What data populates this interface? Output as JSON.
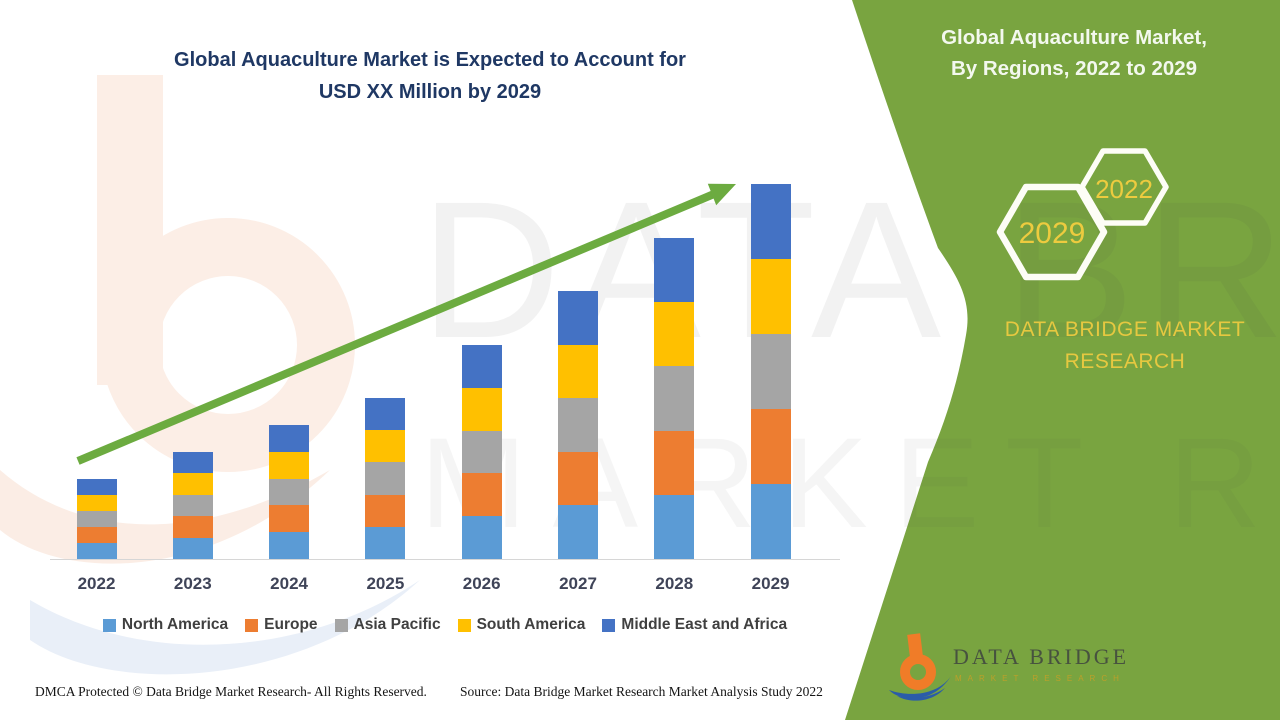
{
  "title": {
    "line1": "Global Aquaculture Market is Expected to Account for",
    "line2": "USD XX Million by 2029"
  },
  "right_panel": {
    "heading_line1": "Global Aquaculture Market,",
    "heading_line2": "By Regions, 2022 to 2029",
    "hexagons": [
      {
        "label": "2029"
      },
      {
        "label": "2022"
      }
    ],
    "brand_line1": "DATA BRIDGE MARKET",
    "brand_line2": "RESEARCH",
    "panel_color": "#79A440",
    "hexagon_outline_color": "#FDFDF6",
    "accent_yellow": "#E6C840"
  },
  "watermark": {
    "line1": "DATA BRIDGE",
    "line2": "MARKET RESEARCH"
  },
  "logo": {
    "name": "DATA BRIDGE",
    "subtitle": "MARKET RESEARCH"
  },
  "footer": {
    "dmca": "DMCA Protected © Data Bridge Market Research- All Rights Reserved.",
    "source": "Source: Data Bridge Market Research Market Analysis Study 2022"
  },
  "chart_data": {
    "type": "bar",
    "variant": "stacked",
    "title": "Global Aquaculture Market is Expected to Account for USD XX Million by 2029",
    "xlabel": "",
    "ylabel": "",
    "y_axis_visible": false,
    "grid": false,
    "legend_position": "bottom",
    "ylim": [
      0,
      400
    ],
    "units": "relative index (no numeric axis shown; values labeled USD XX Million)",
    "categories": [
      "2022",
      "2023",
      "2024",
      "2025",
      "2026",
      "2027",
      "2028",
      "2029"
    ],
    "series": [
      {
        "name": "North America",
        "color": "#5B9BD5",
        "values": [
          16,
          21.4,
          26.8,
          32.2,
          42.8,
          53.6,
          64.2,
          75
        ]
      },
      {
        "name": "Europe",
        "color": "#ED7D31",
        "values": [
          16,
          21.4,
          26.8,
          32.2,
          42.8,
          53.6,
          64.2,
          75
        ]
      },
      {
        "name": "Asia Pacific",
        "color": "#A5A5A5",
        "values": [
          16,
          21.4,
          26.8,
          32.2,
          42.8,
          53.6,
          64.2,
          75
        ]
      },
      {
        "name": "South America",
        "color": "#FFC000",
        "values": [
          16,
          21.4,
          26.8,
          32.2,
          42.8,
          53.6,
          64.2,
          75
        ]
      },
      {
        "name": "Middle East and Africa",
        "color": "#4472C4",
        "values": [
          16,
          21.4,
          26.8,
          32.2,
          42.8,
          53.6,
          64.2,
          75
        ]
      }
    ],
    "totals": [
      80,
      107,
      134,
      161,
      214,
      268,
      321,
      375
    ],
    "trend_arrow": {
      "present": true,
      "color": "#6CAB40",
      "direction": "up-right"
    }
  }
}
